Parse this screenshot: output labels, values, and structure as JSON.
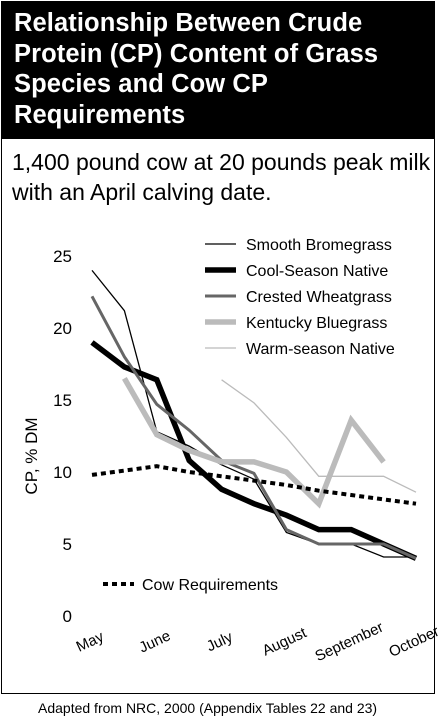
{
  "title": "Relationship Between Crude Protein (CP) Content of Grass Species and Cow CP Requirements",
  "subtitle": "1,400 pound cow at 20 pounds peak milk with an April calving date.",
  "source": "Adapted from NRC, 2000 (Appendix Tables 22 and 23)",
  "chart_data": {
    "type": "line",
    "ylabel": "CP, % DM",
    "xlabel": "",
    "ylim": [
      0,
      25
    ],
    "yticks": [
      0,
      5,
      10,
      15,
      20,
      25
    ],
    "xlim": [
      0,
      10
    ],
    "x_tick_labels": [
      {
        "x": 0,
        "label": "May"
      },
      {
        "x": 2,
        "label": "June"
      },
      {
        "x": 4,
        "label": "July"
      },
      {
        "x": 6,
        "label": "August"
      },
      {
        "x": 8,
        "label": "September"
      },
      {
        "x": 10,
        "label": "October"
      }
    ],
    "grid": false,
    "legend_position": "top-right",
    "series": [
      {
        "name": "Smooth Bromegrass",
        "color": "#000000",
        "style": "thin",
        "x": [
          0,
          1,
          2,
          3,
          4,
          5,
          6,
          7,
          8,
          9,
          10
        ],
        "y": [
          24,
          21.2,
          12.8,
          11.8,
          10.5,
          9.5,
          5.8,
          5.0,
          5.0,
          4.1,
          4.1
        ]
      },
      {
        "name": "Cool-Season Native",
        "color": "#000000",
        "style": "thick",
        "x": [
          0,
          1,
          2,
          3,
          4,
          5,
          6,
          7,
          8,
          9,
          10
        ],
        "y": [
          19.0,
          17.3,
          16.4,
          10.8,
          8.8,
          7.8,
          7.0,
          6.0,
          6.0,
          5.0,
          4.0
        ]
      },
      {
        "name": "Crested Wheatgrass",
        "color": "#666666",
        "style": "medium",
        "x": [
          0,
          1,
          2,
          3,
          4,
          5,
          6,
          7,
          8,
          9,
          10
        ],
        "y": [
          22.2,
          18.0,
          14.7,
          12.9,
          10.8,
          9.9,
          6.0,
          5.0,
          5.0,
          5.0,
          4.0
        ]
      },
      {
        "name": "Kentucky Bluegrass",
        "color": "#bbbbbb",
        "style": "thick",
        "x": [
          1,
          2,
          3,
          4,
          5,
          6,
          7,
          8,
          9
        ],
        "y": [
          16.5,
          12.6,
          11.5,
          10.7,
          10.7,
          10.0,
          7.8,
          13.6,
          10.7
        ]
      },
      {
        "name": "Warm-season Native",
        "color": "#bbbbbb",
        "style": "thin",
        "x": [
          4,
          5,
          6,
          7,
          8,
          9,
          10
        ],
        "y": [
          16.4,
          14.8,
          12.4,
          9.7,
          9.7,
          9.7,
          8.6
        ]
      },
      {
        "name": "Cow Requirements",
        "color": "#000000",
        "style": "dotted",
        "x": [
          0,
          1,
          2,
          3,
          4,
          5,
          6,
          7,
          8,
          9,
          10
        ],
        "y": [
          9.8,
          10.1,
          10.4,
          10.0,
          9.7,
          9.4,
          9.1,
          8.7,
          8.4,
          8.1,
          7.8
        ]
      }
    ]
  }
}
